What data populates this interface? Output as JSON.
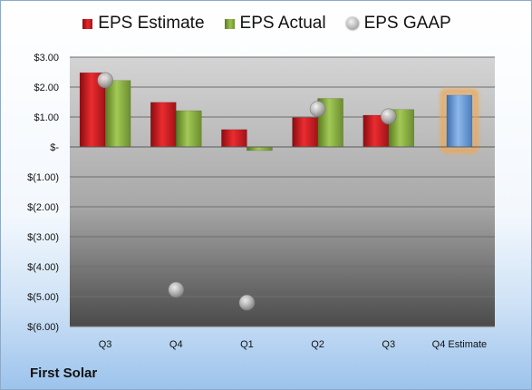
{
  "company": "First Solar",
  "legend": {
    "estimate": "EPS Estimate",
    "actual": "EPS Actual",
    "gaap": "EPS GAAP"
  },
  "colors": {
    "estimate": "#d42027",
    "actual": "#8db543",
    "gaap": "#b8b8b8",
    "forecast": "#6c9fd8",
    "forecast_glow": "#f2a64b"
  },
  "chart_data": {
    "type": "bar",
    "categories": [
      "Q3",
      "Q4",
      "Q1",
      "Q2",
      "Q3",
      "Q4 Estimate"
    ],
    "series": [
      {
        "name": "EPS Estimate",
        "values": [
          2.48,
          1.49,
          0.58,
          0.98,
          1.06,
          null
        ]
      },
      {
        "name": "EPS Actual",
        "values": [
          2.22,
          1.21,
          -0.12,
          1.62,
          1.25,
          1.73
        ]
      },
      {
        "name": "EPS GAAP",
        "values": [
          2.23,
          -4.77,
          -5.2,
          1.27,
          1.02,
          null
        ]
      }
    ],
    "ylim": [
      -6,
      3
    ],
    "yticks": [
      {
        "value": 3,
        "label": "$3.00"
      },
      {
        "value": 2,
        "label": "$2.00"
      },
      {
        "value": 1,
        "label": "$1.00"
      },
      {
        "value": 0,
        "label": "$-"
      },
      {
        "value": -1,
        "label": "$(1.00)"
      },
      {
        "value": -2,
        "label": "$(2.00)"
      },
      {
        "value": -3,
        "label": "$(3.00)"
      },
      {
        "value": -4,
        "label": "$(4.00)"
      },
      {
        "value": -5,
        "label": "$(5.00)"
      },
      {
        "value": -6,
        "label": "$(6.00)"
      }
    ],
    "grid": true,
    "legend_position": "top"
  }
}
